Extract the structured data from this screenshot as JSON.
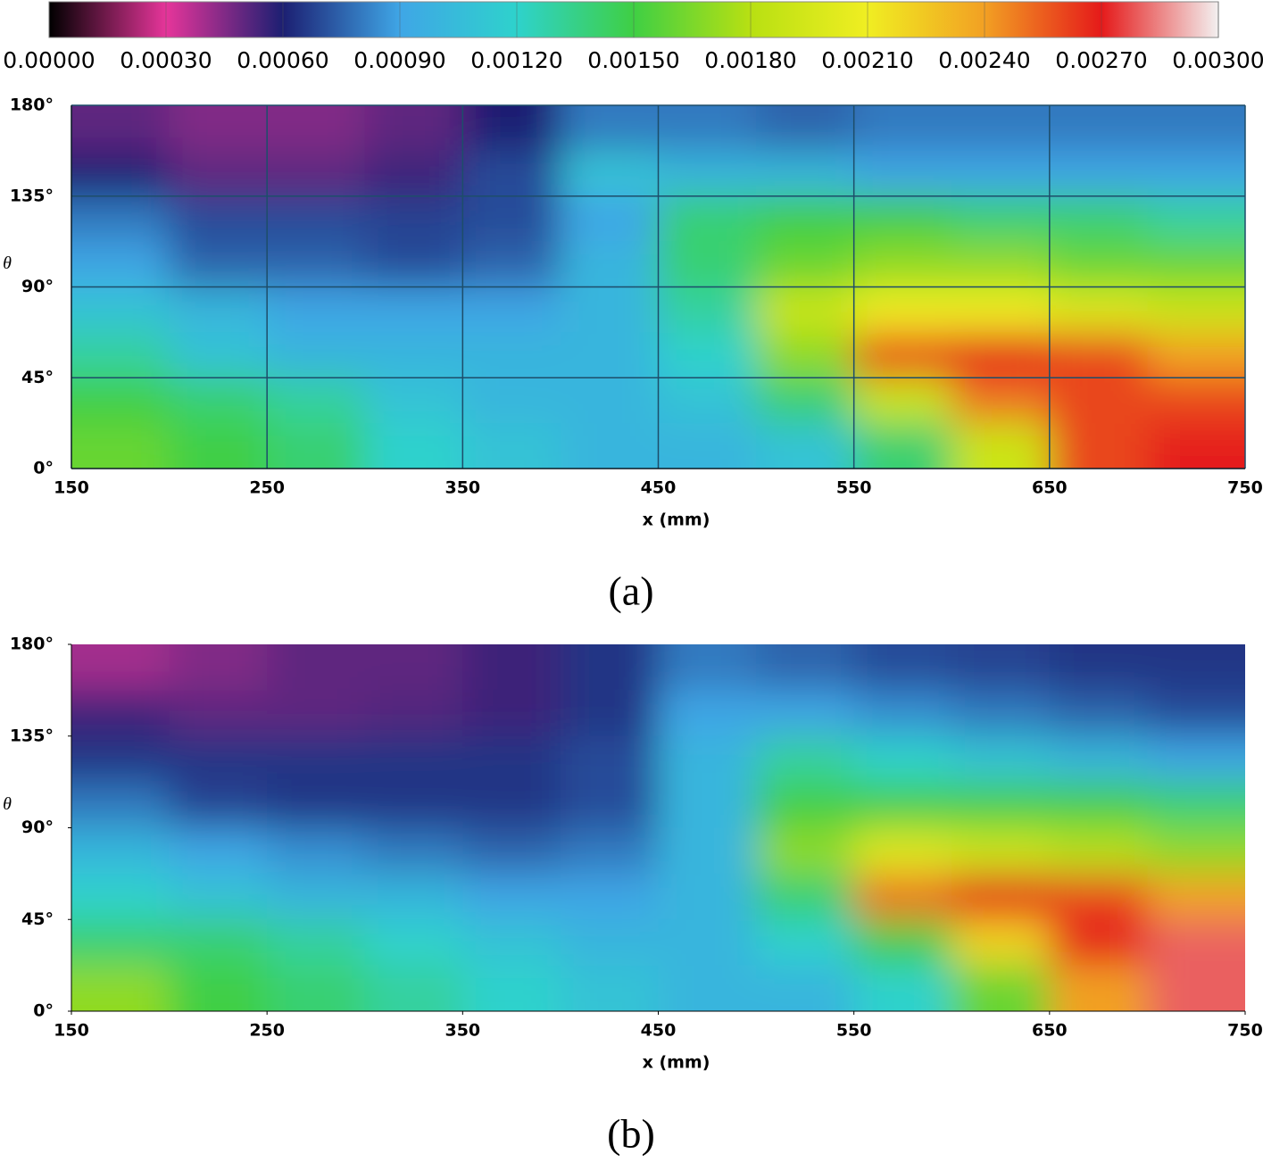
{
  "colorbar": {
    "lim": [
      0,
      0.003
    ],
    "colors": [
      "#000000",
      "#e6359a",
      "#1c1f72",
      "#3fa6e6",
      "#2ed2cc",
      "#3fcf44",
      "#b8e012",
      "#f0ee22",
      "#f2a023",
      "#e51a1a",
      "#f3f0f0"
    ],
    "ticks": [
      {
        "value": 0,
        "label": "0.00000"
      },
      {
        "value": 0.0003,
        "label": "0.00030"
      },
      {
        "value": 0.0006,
        "label": "0.00060"
      },
      {
        "value": 0.0009,
        "label": "0.00090"
      },
      {
        "value": 0.0012,
        "label": "0.00120"
      },
      {
        "value": 0.0015,
        "label": "0.00150"
      },
      {
        "value": 0.0018,
        "label": "0.00180"
      },
      {
        "value": 0.0021,
        "label": "0.00210"
      },
      {
        "value": 0.0024,
        "label": "0.00240"
      },
      {
        "value": 0.0027,
        "label": "0.00270"
      },
      {
        "value": 0.003,
        "label": "0.00300"
      }
    ]
  },
  "chart_data": [
    {
      "type": "heatmap",
      "panel_label": "(a)",
      "x_label": "x (mm)",
      "y_label": "θ",
      "grid": true,
      "xlim": [
        150,
        750
      ],
      "ylim": [
        0,
        180
      ],
      "xticks": [
        150,
        250,
        350,
        450,
        550,
        650,
        750
      ],
      "yticks": [
        {
          "value": 0,
          "label": "0°"
        },
        {
          "value": 45,
          "label": "45°"
        },
        {
          "value": 90,
          "label": "90°"
        },
        {
          "value": 135,
          "label": "135°"
        },
        {
          "value": 180,
          "label": "180°"
        }
      ],
      "x": [
        175,
        225,
        275,
        325,
        375,
        425,
        475,
        525,
        575,
        625,
        675,
        725
      ],
      "y": [
        168.75,
        146.25,
        123.75,
        101.25,
        78.75,
        56.25,
        33.75,
        11.25
      ],
      "values": [
        [
          0.0005,
          0.00045,
          0.00045,
          0.0005,
          0.0006,
          0.0008,
          0.0008,
          0.00075,
          0.0008,
          0.0008,
          0.0008,
          0.0008
        ],
        [
          0.0006,
          0.0005,
          0.0005,
          0.00055,
          0.0007,
          0.0011,
          0.001,
          0.001,
          0.0009,
          0.0009,
          0.0009,
          0.0009
        ],
        [
          0.0008,
          0.0007,
          0.0007,
          0.00068,
          0.0007,
          0.0009,
          0.0014,
          0.0015,
          0.0015,
          0.0014,
          0.0014,
          0.0013
        ],
        [
          0.0009,
          0.00075,
          0.00075,
          0.0007,
          0.00075,
          0.001,
          0.0014,
          0.0016,
          0.0017,
          0.0017,
          0.0016,
          0.0016
        ],
        [
          0.0011,
          0.001,
          0.0009,
          0.0009,
          0.0009,
          0.001,
          0.0013,
          0.0019,
          0.0021,
          0.0021,
          0.002,
          0.0019
        ],
        [
          0.0013,
          0.0011,
          0.001,
          0.001,
          0.001,
          0.001,
          0.0012,
          0.0017,
          0.0026,
          0.0027,
          0.0026,
          0.0024
        ],
        [
          0.0015,
          0.0014,
          0.0013,
          0.0011,
          0.001,
          0.001,
          0.0011,
          0.0014,
          0.0019,
          0.0025,
          0.0026,
          0.0026
        ],
        [
          0.0016,
          0.0015,
          0.0014,
          0.0012,
          0.0011,
          0.001,
          0.001,
          0.0011,
          0.0014,
          0.0019,
          0.0026,
          0.0027
        ]
      ]
    },
    {
      "type": "heatmap",
      "panel_label": "(b)",
      "x_label": "x (mm)",
      "y_label": "θ",
      "grid": false,
      "xlim": [
        150,
        750
      ],
      "ylim": [
        0,
        180
      ],
      "xticks": [
        150,
        250,
        350,
        450,
        550,
        650,
        750
      ],
      "yticks": [
        {
          "value": 0,
          "label": "0°"
        },
        {
          "value": 45,
          "label": "45°"
        },
        {
          "value": 90,
          "label": "90°"
        },
        {
          "value": 135,
          "label": "135°"
        },
        {
          "value": 180,
          "label": "180°"
        }
      ],
      "x": [
        175,
        225,
        275,
        325,
        375,
        425,
        475,
        525,
        575,
        625,
        675,
        725
      ],
      "y": [
        168.75,
        146.25,
        123.75,
        101.25,
        78.75,
        56.25,
        33.75,
        11.25
      ],
      "values": [
        [
          0.0004,
          0.00045,
          0.0005,
          0.0005,
          0.00055,
          0.00065,
          0.0008,
          0.00075,
          0.0007,
          0.00068,
          0.00065,
          0.00065
        ],
        [
          0.00055,
          0.0005,
          0.0005,
          0.00052,
          0.00055,
          0.00065,
          0.0009,
          0.0009,
          0.00085,
          0.0008,
          0.00075,
          0.0007
        ],
        [
          0.00065,
          0.00065,
          0.00065,
          0.00065,
          0.00065,
          0.0007,
          0.001,
          0.0013,
          0.0012,
          0.0011,
          0.001,
          0.0009
        ],
        [
          0.0008,
          0.00068,
          0.00065,
          0.00065,
          0.00065,
          0.0007,
          0.001,
          0.0015,
          0.0015,
          0.0015,
          0.0015,
          0.0014
        ],
        [
          0.001,
          0.0009,
          0.00085,
          0.0008,
          0.00075,
          0.0008,
          0.001,
          0.0017,
          0.002,
          0.0019,
          0.0018,
          0.0017
        ],
        [
          0.0012,
          0.0011,
          0.001,
          0.001,
          0.0009,
          0.0009,
          0.001,
          0.0014,
          0.0025,
          0.0027,
          0.0026,
          0.0024
        ],
        [
          0.0014,
          0.0014,
          0.0013,
          0.0012,
          0.0011,
          0.001,
          0.001,
          0.0012,
          0.0015,
          0.0022,
          0.0027,
          0.0028
        ],
        [
          0.0017,
          0.0015,
          0.0014,
          0.0013,
          0.0012,
          0.0011,
          0.001,
          0.001,
          0.0012,
          0.0016,
          0.0024,
          0.0028
        ]
      ]
    }
  ]
}
